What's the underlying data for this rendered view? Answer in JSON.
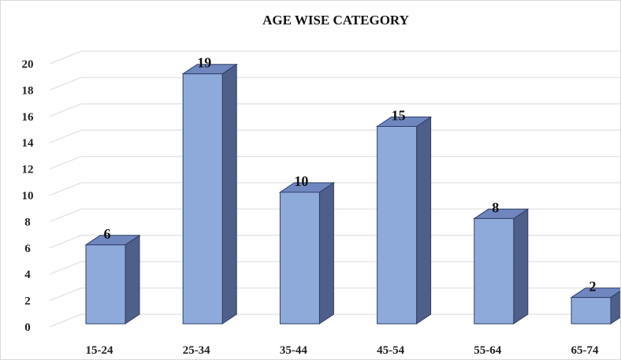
{
  "chart_data": {
    "type": "bar",
    "title": "AGE WISE CATEGORY",
    "categories": [
      "15-24",
      "25-34",
      "35-44",
      "45-54",
      "55-64",
      "65-74"
    ],
    "values": [
      6,
      19,
      10,
      15,
      8,
      2
    ],
    "y_ticks": [
      "0",
      "2",
      "4",
      "6",
      "8",
      "10",
      "12",
      "14",
      "16",
      "18",
      "20"
    ],
    "ylim": [
      0,
      20
    ],
    "grid": true,
    "style": "3d-column",
    "colors": {
      "bar_front": "#8eaadb",
      "bar_side": "#4e5f8a",
      "bar_top": "#6f86bf",
      "bar_outline": "#2f3f66",
      "grid": "#e6e6e6"
    }
  }
}
